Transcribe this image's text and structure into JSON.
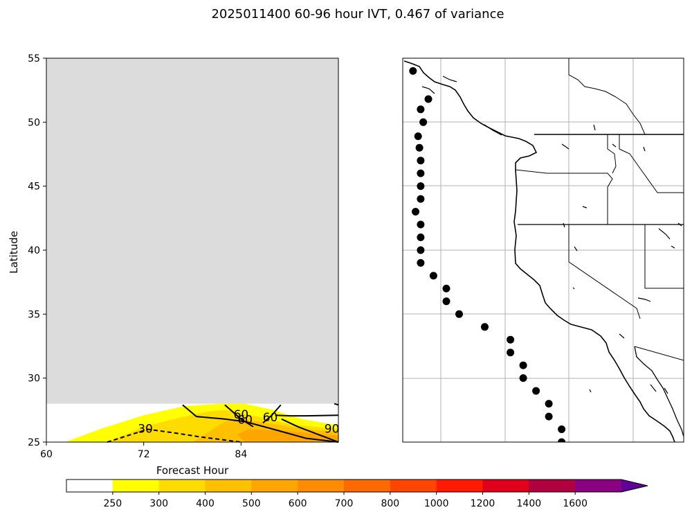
{
  "figure": {
    "title": "2025011400 60-96 hour IVT, 0.467 of variance"
  },
  "chart_data": [
    {
      "type": "heatmap",
      "panel": "left",
      "xlabel": "Forecast Hour",
      "ylabel": "Latitude",
      "xlim": [
        60,
        96
      ],
      "ylim": [
        25,
        55
      ],
      "xticks": [
        "60",
        "72",
        "84"
      ],
      "yticks": [
        "25",
        "30",
        "35",
        "40",
        "45",
        "50",
        "55"
      ],
      "masked_above_latitude": 28,
      "masked_color": "#dcdcdc",
      "filled_regions": [
        {
          "level": 250,
          "color": "#ffff00",
          "points": [
            [
              62.3,
              25
            ],
            [
              67,
              26.1
            ],
            [
              72,
              27.1
            ],
            [
              77,
              27.8
            ],
            [
              81.5,
              28
            ],
            [
              84.5,
              28
            ],
            [
              88,
              27.5
            ],
            [
              91.5,
              26.8
            ],
            [
              96,
              26.3
            ],
            [
              96,
              25
            ]
          ]
        },
        {
          "level": 300,
          "color": "#ffdc00",
          "points": [
            [
              67.5,
              25
            ],
            [
              72,
              26.2
            ],
            [
              77,
              27
            ],
            [
              80,
              27.4
            ],
            [
              82,
              27.5
            ],
            [
              86,
              27
            ],
            [
              90,
              26.4
            ],
            [
              96,
              26
            ],
            [
              96,
              25
            ]
          ]
        },
        {
          "level": 400,
          "color": "#ffc000",
          "points": [
            [
              78,
              25
            ],
            [
              80,
              25.8
            ],
            [
              82,
              26.6
            ],
            [
              84,
              26.8
            ],
            [
              88,
              26.4
            ],
            [
              92,
              26
            ],
            [
              96,
              25.8
            ],
            [
              96,
              25
            ]
          ]
        },
        {
          "level": 500,
          "color": "#ffa500",
          "points": [
            [
              84.5,
              25
            ],
            [
              83.5,
              25.6
            ],
            [
              85,
              26
            ],
            [
              89,
              25.9
            ],
            [
              96,
              25.5
            ],
            [
              96,
              25
            ]
          ]
        }
      ],
      "contours": [
        {
          "label": "30",
          "style": "dashed",
          "label_at": [
            72.2,
            26.0
          ],
          "points": [
            [
              67.5,
              25
            ],
            [
              70.5,
              25.6
            ],
            [
              72.5,
              26
            ],
            [
              76,
              25.7
            ],
            [
              79,
              25.4
            ],
            [
              84,
              25
            ]
          ]
        },
        {
          "label": "60",
          "style": "solid",
          "label_at": [
            84.0,
            27.1
          ],
          "points": [
            [
              76.8,
              27.9
            ],
            [
              78.5,
              27
            ],
            [
              82,
              26.8
            ],
            [
              84.5,
              26.6
            ],
            [
              88,
              26
            ],
            [
              92,
              25.3
            ],
            [
              96,
              25
            ]
          ]
        },
        {
          "label": "60",
          "style": "solid",
          "label_at": [
            84.5,
            26.7
          ],
          "points": [
            [
              82,
              27.9
            ],
            [
              84,
              26.8
            ],
            [
              85.5,
              26.2
            ]
          ]
        },
        {
          "label": "60",
          "style": "solid",
          "label_at": [
            87.6,
            26.9
          ],
          "points": [
            [
              86.7,
              26.5
            ],
            [
              87.8,
              27.1
            ],
            [
              88.9,
              27.9
            ]
          ]
        },
        {
          "label": "90",
          "style": "solid",
          "label_at": [
            95.2,
            26.0
          ],
          "points": [
            [
              88.2,
              27.1
            ],
            [
              90,
              27.05
            ],
            [
              92,
              27.05
            ],
            [
              96,
              27.1
            ]
          ]
        },
        {
          "label": "",
          "style": "solid",
          "points": [
            [
              89,
              26.8
            ],
            [
              91,
              26.2
            ],
            [
              93.5,
              25.6
            ],
            [
              96,
              25
            ]
          ]
        },
        {
          "label": "",
          "style": "solid",
          "points": [
            [
              95.5,
              28
            ],
            [
              96,
              27.9
            ]
          ]
        }
      ]
    },
    {
      "type": "scatter",
      "panel": "right",
      "map": "US West Coast",
      "grid": true,
      "points": [
        [
          -124.8,
          54
        ],
        [
          -123.6,
          51.8
        ],
        [
          -124.2,
          51
        ],
        [
          -124,
          50
        ],
        [
          -124.4,
          48.9
        ],
        [
          -124.3,
          48
        ],
        [
          -124.2,
          47
        ],
        [
          -124.2,
          46
        ],
        [
          -124.2,
          45
        ],
        [
          -124.2,
          44
        ],
        [
          -124.6,
          43
        ],
        [
          -124.2,
          42
        ],
        [
          -124.2,
          41
        ],
        [
          -124.2,
          40
        ],
        [
          -124.2,
          39
        ],
        [
          -123.2,
          38
        ],
        [
          -122.2,
          37
        ],
        [
          -122.2,
          36
        ],
        [
          -121.2,
          35
        ],
        [
          -119.2,
          34
        ],
        [
          -117.2,
          33
        ],
        [
          -117.2,
          32
        ],
        [
          -116.2,
          31
        ],
        [
          -116.2,
          30
        ],
        [
          -115.2,
          29
        ],
        [
          -114.2,
          28
        ],
        [
          -114.2,
          27
        ],
        [
          -113.2,
          26
        ],
        [
          -113.2,
          25
        ]
      ]
    },
    {
      "type": "colorbar",
      "levels": [
        250,
        300,
        400,
        500,
        600,
        700,
        800,
        1000,
        1200,
        1400,
        1600
      ],
      "tick_labels": [
        "250",
        "300",
        "400",
        "500",
        "600",
        "700",
        "800",
        "1000",
        "1200",
        "1400",
        "1600"
      ],
      "colors": [
        "#ffffff",
        "#ffff00",
        "#ffdc00",
        "#ffc000",
        "#ffa500",
        "#ff8c00",
        "#ff6a00",
        "#ff4500",
        "#ff1a00",
        "#e0001c",
        "#b0003e",
        "#8a0080",
        "#60009a"
      ],
      "extend": "max"
    }
  ]
}
